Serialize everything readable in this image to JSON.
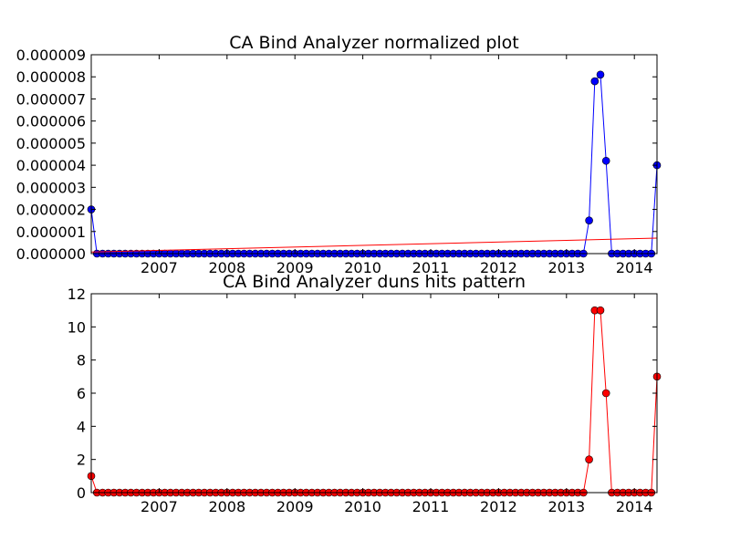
{
  "chart_data": [
    {
      "type": "line",
      "title": "CA Bind Analyzer normalized plot",
      "xlabel": "",
      "ylabel": "",
      "x_tick_labels": [
        "2007",
        "2008",
        "2009",
        "2010",
        "2011",
        "2012",
        "2013",
        "2014"
      ],
      "y_tick_labels": [
        "0.000000",
        "0.000001",
        "0.000002",
        "0.000003",
        "0.000004",
        "0.000005",
        "0.000006",
        "0.000007",
        "0.000008",
        "0.000009"
      ],
      "xlim": [
        "2006-01",
        "2014-05"
      ],
      "ylim": [
        0,
        9e-06
      ],
      "grid": false,
      "legend": false,
      "series": [
        {
          "color": "#0000ff",
          "marker": "circle",
          "start": "2006-01",
          "step": "month",
          "values": [
            2e-06,
            0,
            0,
            0,
            0,
            0,
            0,
            0,
            0,
            0,
            0,
            0,
            0,
            0,
            0,
            0,
            0,
            0,
            0,
            0,
            0,
            0,
            0,
            0,
            0,
            0,
            0,
            0,
            0,
            0,
            0,
            0,
            0,
            0,
            0,
            0,
            0,
            0,
            0,
            0,
            0,
            0,
            0,
            0,
            0,
            0,
            0,
            0,
            0,
            0,
            0,
            0,
            0,
            0,
            0,
            0,
            0,
            0,
            0,
            0,
            0,
            0,
            0,
            0,
            0,
            0,
            0,
            0,
            0,
            0,
            0,
            0,
            0,
            0,
            0,
            0,
            0,
            0,
            0,
            0,
            0,
            0,
            0,
            0,
            0,
            0,
            0,
            0,
            1.5e-06,
            7.8e-06,
            8.1e-06,
            4.2e-06,
            0,
            0,
            0,
            0,
            0,
            0,
            0,
            0,
            4e-06
          ]
        },
        {
          "color": "#ff0000",
          "marker": "none",
          "kind": "trend",
          "x": [
            "2006-01",
            "2014-05"
          ],
          "values": [
            7e-08,
            7e-07
          ]
        }
      ]
    },
    {
      "type": "line",
      "title": "CA Bind Analyzer duns hits pattern",
      "xlabel": "",
      "ylabel": "",
      "x_tick_labels": [
        "2007",
        "2008",
        "2009",
        "2010",
        "2011",
        "2012",
        "2013",
        "2014"
      ],
      "y_tick_labels": [
        "0",
        "2",
        "4",
        "6",
        "8",
        "10",
        "12"
      ],
      "xlim": [
        "2006-01",
        "2014-05"
      ],
      "ylim": [
        0,
        12
      ],
      "grid": false,
      "legend": false,
      "series": [
        {
          "color": "#ff0000",
          "marker": "circle",
          "start": "2006-01",
          "step": "month",
          "values": [
            1,
            0,
            0,
            0,
            0,
            0,
            0,
            0,
            0,
            0,
            0,
            0,
            0,
            0,
            0,
            0,
            0,
            0,
            0,
            0,
            0,
            0,
            0,
            0,
            0,
            0,
            0,
            0,
            0,
            0,
            0,
            0,
            0,
            0,
            0,
            0,
            0,
            0,
            0,
            0,
            0,
            0,
            0,
            0,
            0,
            0,
            0,
            0,
            0,
            0,
            0,
            0,
            0,
            0,
            0,
            0,
            0,
            0,
            0,
            0,
            0,
            0,
            0,
            0,
            0,
            0,
            0,
            0,
            0,
            0,
            0,
            0,
            0,
            0,
            0,
            0,
            0,
            0,
            0,
            0,
            0,
            0,
            0,
            0,
            0,
            0,
            0,
            0,
            2,
            11,
            11,
            6,
            0,
            0,
            0,
            0,
            0,
            0,
            0,
            0,
            7
          ]
        }
      ]
    }
  ]
}
